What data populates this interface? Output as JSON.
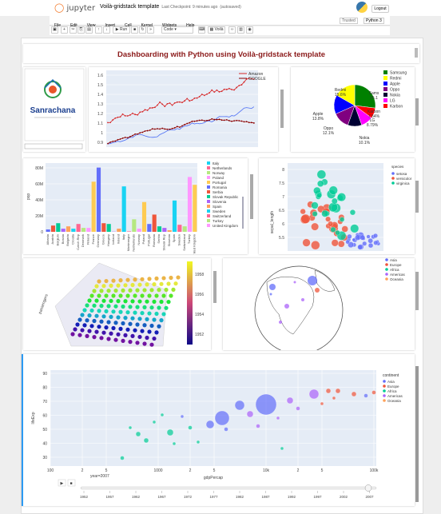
{
  "header": {
    "brand": "jupyter",
    "title": "Voilà-gridstack template",
    "checkpoint": "Last Checkpoint: 9 minutes ago",
    "autosave": "(autosaved)",
    "logout": "Logout",
    "trusted": "Trusted",
    "kernel": "Python 3"
  },
  "menu": [
    "File",
    "Edit",
    "View",
    "Insert",
    "Cell",
    "Kernel",
    "Widgets",
    "Help"
  ],
  "toolbar": {
    "run": "Run",
    "cell_type": "Code",
    "voila": "Voilà"
  },
  "dashboard_title": "Dashboarding with Python using Voilà-gridstack template",
  "logo_text": "Sanrachana",
  "line_chart": {
    "legend": [
      "Amazon",
      "GOOGLE"
    ],
    "y_ticks": [
      "1.6",
      "1.5",
      "1.4",
      "1.3",
      "1.2",
      "1.1",
      "1",
      "0.9"
    ],
    "colors": [
      "#d62728",
      "#8b0000",
      "#4c6ef5"
    ]
  },
  "pie_chart": {
    "labels": [
      "Samsung",
      "Redmi",
      "Apple",
      "Oppo",
      "Nokia",
      "LG",
      "Karbon"
    ],
    "colors": [
      "#008000",
      "#ffff00",
      "#0000ff",
      "#800080",
      "#000033",
      "#ff00ff",
      "#ff0000"
    ],
    "slice_labels": [
      {
        "t": "Sams",
        "v": "25.1"
      },
      {
        "t": "Redmi",
        "v": "15.6%"
      },
      {
        "t": "Apple",
        "v": "13.8%"
      },
      {
        "t": "Oppo",
        "v": "12.1%"
      },
      {
        "t": "Nokia",
        "v": "10.1%"
      },
      {
        "t": "LG",
        "v": "8.79%"
      },
      {
        "t": "Karbon",
        "v": "7.54%"
      }
    ]
  },
  "bar_chart": {
    "ylabel": "pop",
    "y_ticks": [
      "80M",
      "60M",
      "40M",
      "20M",
      "0"
    ],
    "legend": [
      "Italy",
      "Netherlands",
      "Norway",
      "Poland",
      "Portugal",
      "Romania",
      "Serbia",
      "Slovak Republic",
      "Slovenia",
      "Spain",
      "Sweden",
      "Switzerland",
      "Turkey",
      "United Kingdom"
    ],
    "countries": [
      "Albania",
      "Austria",
      "Belgium",
      "Bosnia",
      "Bulgaria",
      "Croatia",
      "Czech Rep",
      "Denmark",
      "Finland",
      "France",
      "Germany",
      "Greece",
      "Hungary",
      "Iceland",
      "Ireland",
      "Italy",
      "Montenegro",
      "Netherlands",
      "Norway",
      "Poland",
      "Portugal",
      "Romania",
      "Serbia",
      "Slovak Rep",
      "Slovenia",
      "Spain",
      "Sweden",
      "Switzerland",
      "Turkey",
      "United Kingdom"
    ]
  },
  "scatter_iris": {
    "ylabel": "sepal_length",
    "y_ticks": [
      "8",
      "7.5",
      "7",
      "6.5",
      "6",
      "5.5"
    ],
    "legend_title": "species",
    "legend": [
      "setosa",
      "versicolor",
      "virginica"
    ]
  },
  "surface3d": {
    "axis_y": "passengers",
    "cbar_ticks": [
      "1958",
      "1956",
      "1954",
      "1952"
    ]
  },
  "geo": {
    "legend": [
      "Asia",
      "Europe",
      "Africa",
      "Americas",
      "Oceania"
    ]
  },
  "gapminder": {
    "ylabel": "lifeExp",
    "xlabel": "gdpPercap",
    "y_ticks": [
      "90",
      "80",
      "70",
      "60",
      "50",
      "40",
      "30"
    ],
    "x_ticks": [
      "100",
      "2",
      "5",
      "1000",
      "2",
      "5",
      "10k",
      "2",
      "5",
      "100k"
    ],
    "legend_title": "continent",
    "legend": [
      "Asia",
      "Europe",
      "Africa",
      "Americas",
      "Oceania"
    ],
    "slider_label": "year=2007",
    "years": [
      "1952",
      "1957",
      "1962",
      "1967",
      "1972",
      "1977",
      "1982",
      "1987",
      "1992",
      "1997",
      "2002",
      "2007"
    ]
  }
}
